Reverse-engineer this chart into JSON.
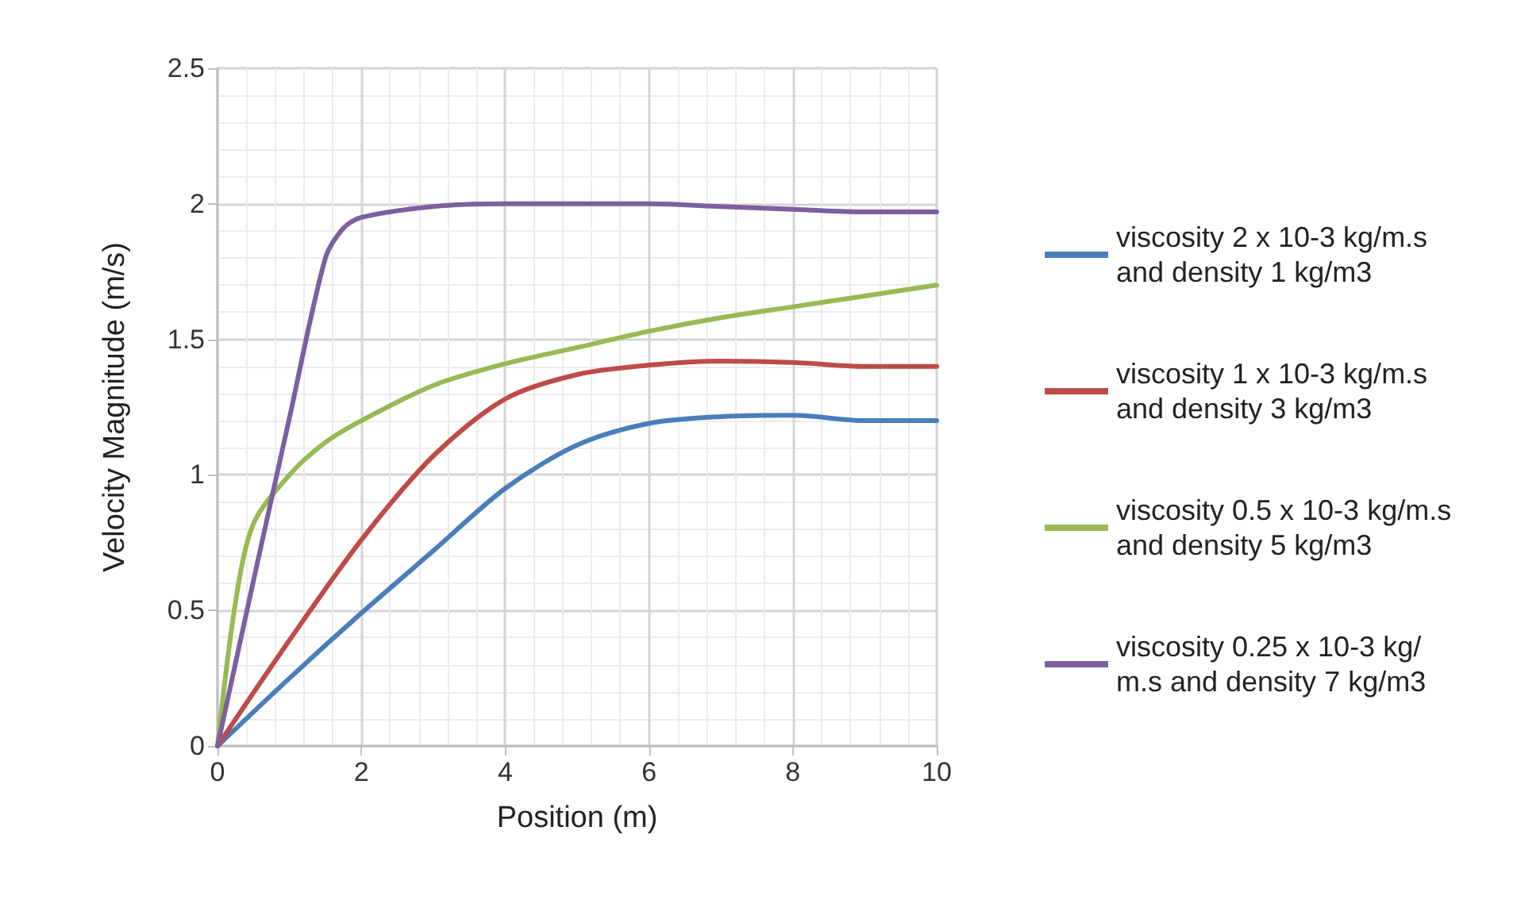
{
  "chart_data": {
    "type": "line",
    "xlabel": "Position (m)",
    "ylabel": "Velocity Magnitude (m/s)",
    "xlim": [
      0,
      10
    ],
    "xticks": [
      0,
      2,
      4,
      6,
      8,
      10
    ],
    "ylim": [
      0,
      2.5
    ],
    "yticks": [
      0,
      0.5,
      1,
      1.5,
      2,
      2.5
    ],
    "grid": true,
    "legend": "right",
    "marker": "none",
    "line_style": "solid",
    "series": [
      {
        "name": "viscosity 2 x 10-3 kg/m.s and density 1 kg/m3",
        "color": "#4a7ebb",
        "x": [
          0,
          1,
          2,
          3,
          4,
          5,
          6,
          7,
          8,
          9,
          10
        ],
        "values": [
          0,
          0.25,
          0.49,
          0.72,
          0.95,
          1.11,
          1.19,
          1.215,
          1.22,
          1.2,
          1.2
        ]
      },
      {
        "name": "viscosity 1 x 10-3 kg/m.s and density 3 kg/m3",
        "color": "#be4b48",
        "x": [
          0,
          1,
          2,
          3,
          4,
          5,
          6,
          7,
          8,
          9,
          10
        ],
        "values": [
          0,
          0.39,
          0.76,
          1.07,
          1.28,
          1.37,
          1.405,
          1.42,
          1.415,
          1.4,
          1.4
        ]
      },
      {
        "name": "viscosity 0.5 x 10-3 kg/m.s and density 5 kg/m3",
        "color": "#98b954",
        "x": [
          0,
          0.25,
          0.5,
          1,
          1.5,
          2,
          3,
          4,
          5,
          6,
          7,
          8,
          9,
          10
        ],
        "values": [
          0,
          0.53,
          0.82,
          1.0,
          1.12,
          1.2,
          1.33,
          1.41,
          1.47,
          1.53,
          1.58,
          1.62,
          1.66,
          1.7
        ]
      },
      {
        "name": "viscosity 0.25 x 10-3 kg/m.s and density 7 kg/m3",
        "color": "#7d5fa0",
        "x": [
          0,
          0.5,
          1,
          1.5,
          1.75,
          2,
          3,
          4,
          5,
          6,
          7,
          8,
          9,
          10
        ],
        "values": [
          0,
          0.61,
          1.21,
          1.8,
          1.91,
          1.95,
          1.99,
          2.0,
          2.0,
          2.0,
          1.99,
          1.98,
          1.97,
          1.97
        ]
      }
    ]
  }
}
